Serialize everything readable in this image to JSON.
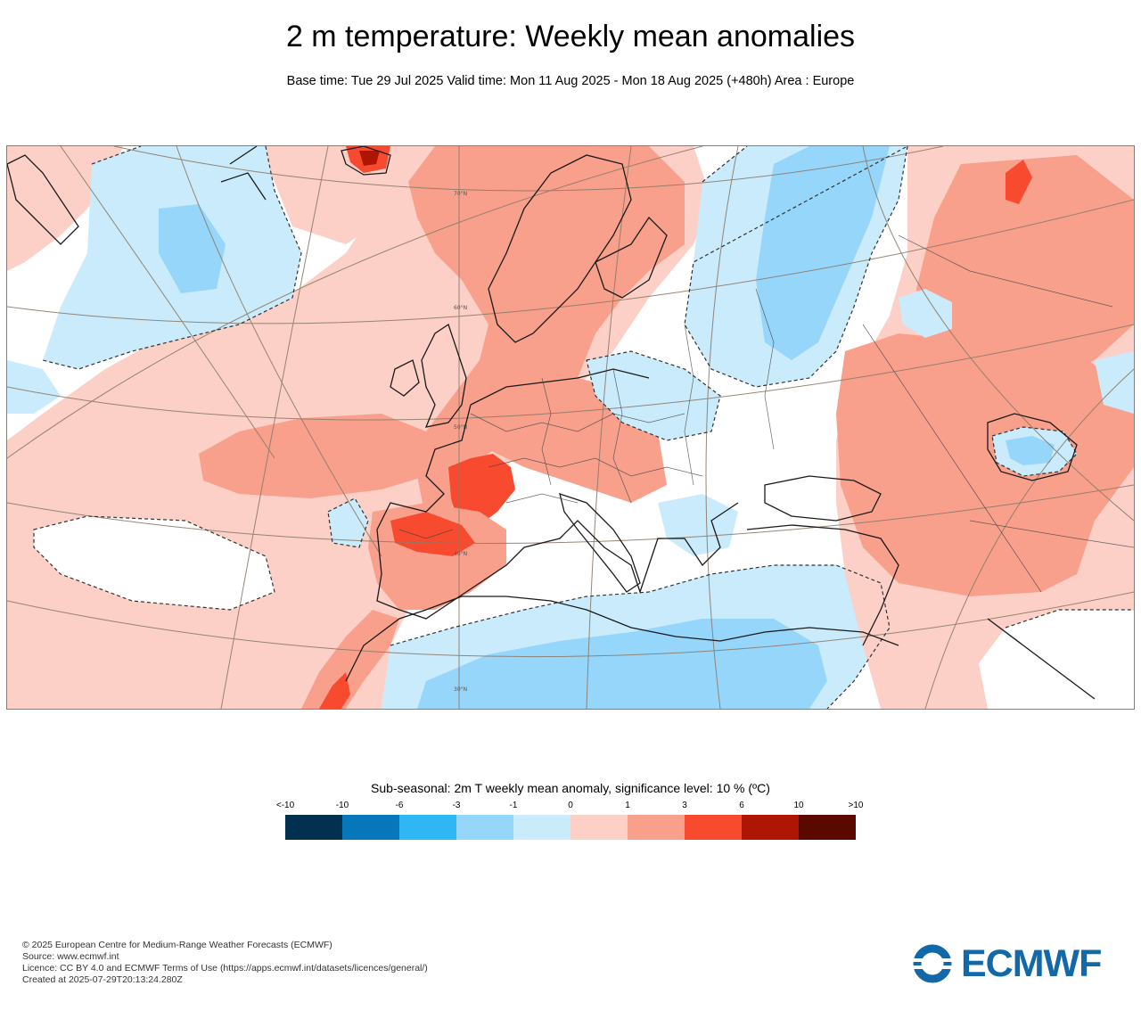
{
  "title": "2 m temperature: Weekly mean anomalies",
  "subtitle": "Base time: Tue 29 Jul 2025 Valid time: Mon 11 Aug 2025 - Mon 18 Aug 2025 (+480h) Area : Europe",
  "map": {
    "latitude_labels": [
      "70°N",
      "60°N",
      "50°N",
      "40°N",
      "30°N"
    ]
  },
  "legend": {
    "title": "Sub-seasonal: 2m T weekly mean anomaly, significance level: 10 % (ºC)",
    "tick_labels": [
      "<-10",
      "-10",
      "-6",
      "-3",
      "-1",
      "0",
      "1",
      "3",
      "6",
      "10",
      ">10"
    ],
    "colors": [
      "#04304f",
      "#0677b8",
      "#2fb6f5",
      "#96d6fa",
      "#c9ebfb",
      "#ffffff",
      "#fccfc7",
      "#f8a08c",
      "#f84a2e",
      "#ae1603",
      "#5a0800"
    ]
  },
  "footer": {
    "copyright": "© 2025 European Centre for Medium-Range Weather Forecasts (ECMWF)",
    "source": "Source: www.ecmwf.int",
    "licence": "Licence: CC BY 4.0 and ECMWF Terms of Use (https://apps.ecmwf.int/datasets/licences/general/)",
    "created": "Created at 2025-07-29T20:13:24.280Z"
  },
  "logo": {
    "text": "ECMWF",
    "color": "#1369a8"
  }
}
